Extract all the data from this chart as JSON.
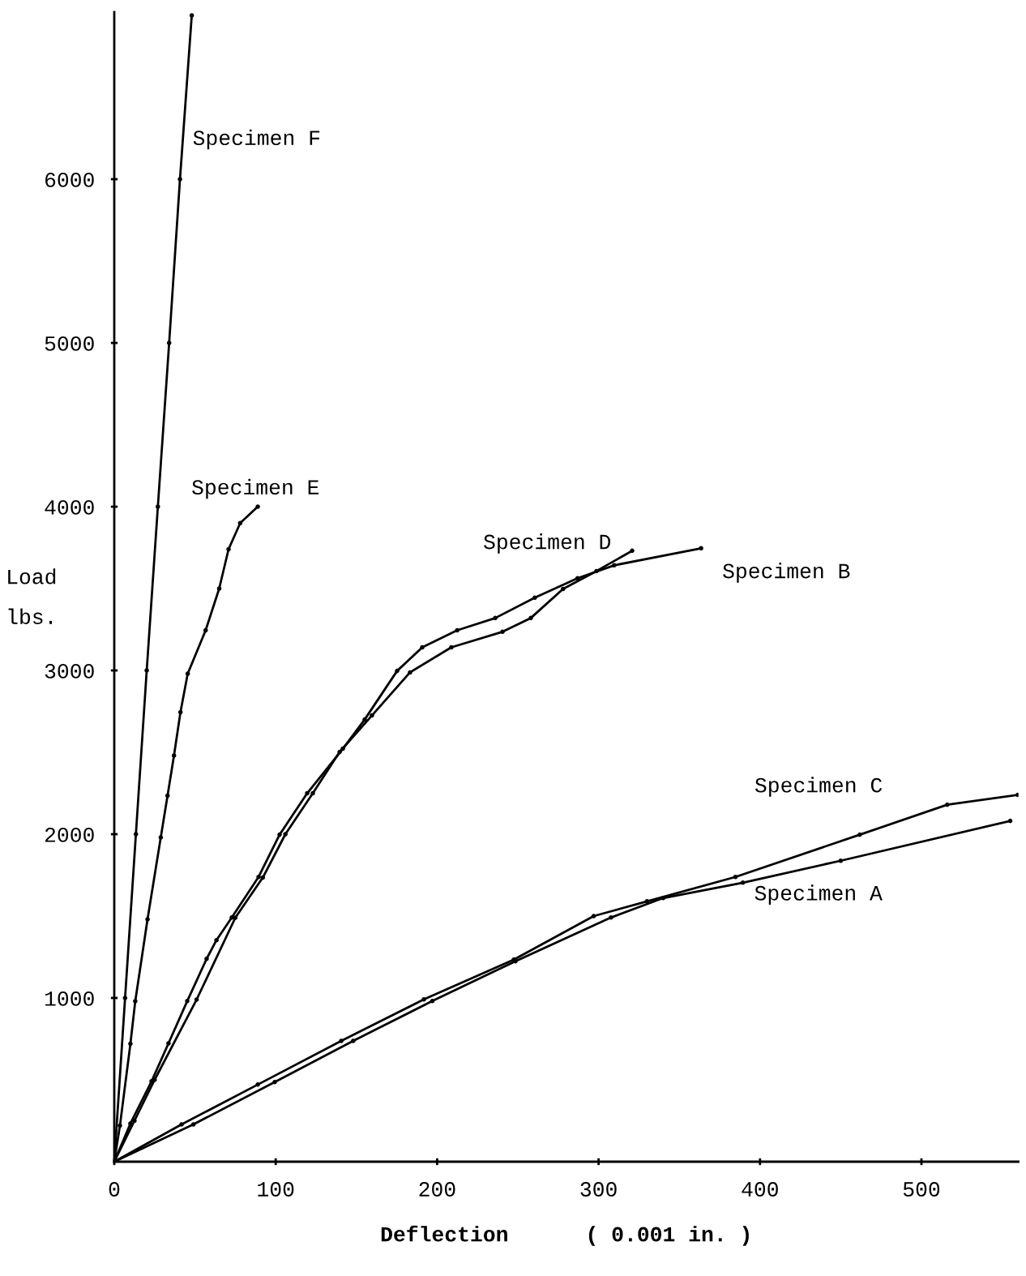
{
  "chart_data": {
    "type": "line",
    "xlabel": "Deflection      ( 0.001 in. )",
    "ylabel": "Load\nlbs.",
    "xlim": [
      0,
      560
    ],
    "ylim": [
      0,
      7020
    ],
    "xticks": [
      0,
      100,
      200,
      300,
      400,
      500
    ],
    "yticks": [
      1000,
      2000,
      3000,
      4000,
      5000,
      6000
    ],
    "grid": false,
    "legend": false,
    "marker": "circle",
    "line_style": "solid",
    "series": [
      {
        "name": "Specimen F",
        "color": "#000000",
        "x": [
          0,
          6.7,
          13.4,
          20.1,
          27,
          34,
          40.7,
          48
        ],
        "values": [
          0,
          1000,
          2000,
          3000,
          4000,
          5000,
          6000,
          7000
        ]
      },
      {
        "name": "Specimen E",
        "color": "#000000",
        "x": [
          0,
          3.5,
          10,
          13,
          20.6,
          28.8,
          33,
          37,
          41,
          45.5,
          56.6,
          65,
          70.8,
          78,
          88.9
        ],
        "values": [
          0,
          220,
          720,
          980,
          1480,
          1980,
          2235,
          2480,
          2745,
          2980,
          3245,
          3500,
          3740,
          3900,
          4000
        ]
      },
      {
        "name": "Specimen B",
        "color": "#000000",
        "x": [
          0,
          10,
          23.1,
          33.6,
          45.2,
          57.2,
          63.3,
          72.8,
          89.4,
          102.4,
          119.5,
          141.6,
          155.1,
          175.2,
          190.8,
          212.4,
          236,
          260.5,
          287,
          309.7,
          363.5
        ],
        "values": [
          0,
          233,
          491,
          723,
          981,
          1239,
          1353,
          1491,
          1739,
          1997,
          2250,
          2522,
          2700,
          2997,
          3141,
          3245,
          3320,
          3444,
          3563,
          3642,
          3746
        ]
      },
      {
        "name": "Specimen D",
        "color": "#000000",
        "x": [
          0,
          12.5,
          25,
          51,
          75,
          92,
          106,
          123,
          139.6,
          159.6,
          183.2,
          208.8,
          240.5,
          258,
          278,
          298.7,
          320.8
        ],
        "values": [
          0,
          250,
          500,
          990,
          1490,
          1735,
          2000,
          2250,
          2502,
          2725,
          2988,
          3141,
          3236,
          3320,
          3498,
          3607,
          3731
        ]
      },
      {
        "name": "Specimen C",
        "color": "#000000",
        "x": [
          0,
          41.7,
          88.9,
          140.6,
          191.8,
          247.5,
          297,
          330,
          384.8,
          461.8,
          516,
          559.7
        ],
        "values": [
          0,
          228,
          471,
          738,
          991,
          1234,
          1500,
          1590,
          1739,
          1997,
          2180,
          2240
        ]
      },
      {
        "name": "Specimen A",
        "color": "#000000",
        "x": [
          0,
          49,
          99.4,
          148,
          197,
          248.5,
          307.7,
          340,
          389.4,
          450,
          555
        ],
        "values": [
          0,
          228,
          486,
          738,
          981,
          1224,
          1491,
          1610,
          1704,
          1838,
          2081
        ]
      }
    ]
  }
}
